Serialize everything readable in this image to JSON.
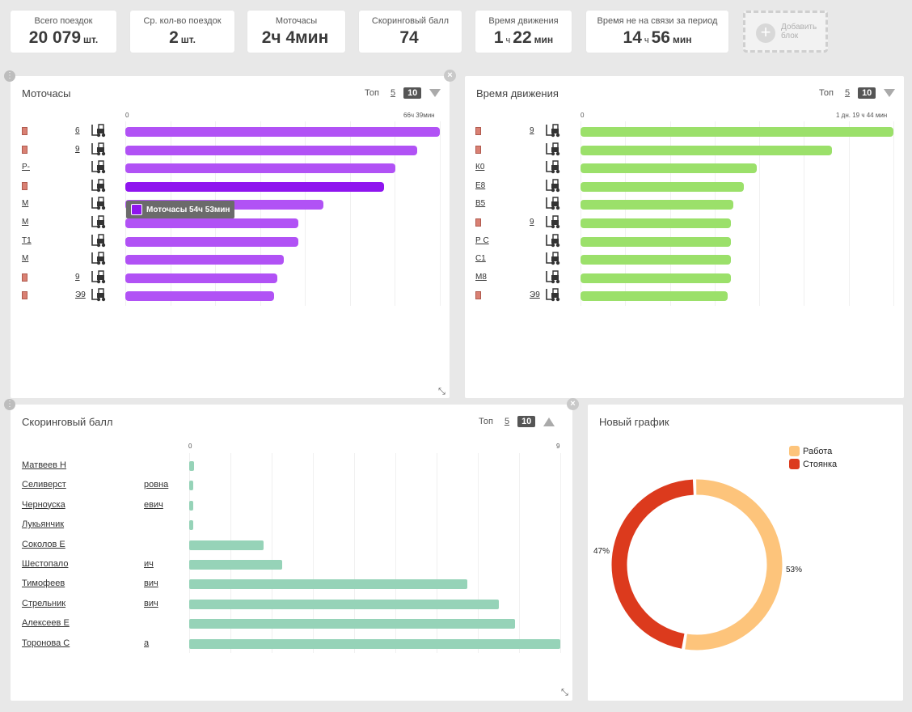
{
  "kpis": [
    {
      "label": "Всего поездок",
      "value": "20 079",
      "unit": "шт."
    },
    {
      "label": "Ср. кол-во поездок",
      "value": "2",
      "unit": "шт."
    },
    {
      "label": "Моточасы",
      "value": "2ч 4мин",
      "unit": ""
    },
    {
      "label": "Скоринговый балл",
      "value": "74",
      "unit": ""
    },
    {
      "label": "Время движения",
      "v1": "1",
      "s1": "ч",
      "v2": "22",
      "s2": "мин"
    },
    {
      "label": "Время не на связи за период",
      "v1": "14",
      "s1": "ч",
      "v2": "56",
      "s2": "мин"
    }
  ],
  "add_block": {
    "line1": "Добавить",
    "line2": "блок"
  },
  "top_control": {
    "label": "Топ",
    "opt5": "5",
    "opt10": "10"
  },
  "motohours": {
    "title": "Моточасы",
    "scale_min": "0",
    "scale_max": "66ч 39мин",
    "color": "#b152f5",
    "highlight_color": "#8f15ef",
    "max": 66.65,
    "rows": [
      {
        "label": "",
        "sub": "6",
        "red": true,
        "value": 66.65
      },
      {
        "label": "",
        "sub": "9",
        "red": true,
        "value": 61.9
      },
      {
        "label": "Р-",
        "sub": "",
        "red": false,
        "value": 57.2
      },
      {
        "label": "",
        "sub": "",
        "red": true,
        "value": 54.88,
        "highlight": true
      },
      {
        "label": "М",
        "sub": "",
        "red": false,
        "value": 42
      },
      {
        "label": "М",
        "sub": "",
        "red": false,
        "value": 36.7
      },
      {
        "label": "Т1",
        "sub": "",
        "red": false,
        "value": 36.7
      },
      {
        "label": "М",
        "sub": "",
        "red": false,
        "value": 33.5
      },
      {
        "label": "",
        "sub": "9",
        "red": true,
        "value": 32.2
      },
      {
        "label": "",
        "sub": "Э9",
        "red": true,
        "value": 31.5
      }
    ],
    "tooltip": "Моточасы 54ч 53мин"
  },
  "movement": {
    "title": "Время движения",
    "scale_min": "0",
    "scale_max": "1 дн. 19 ч 44 мин",
    "color": "#9be06a",
    "max": 43.73,
    "rows": [
      {
        "label": "",
        "sub": "9",
        "red": true,
        "value": 43.73
      },
      {
        "label": "",
        "sub": "",
        "red": true,
        "value": 35.1
      },
      {
        "label": "К0",
        "sub": "",
        "red": false,
        "value": 24.6
      },
      {
        "label": "Е8",
        "sub": "",
        "red": false,
        "value": 22.8
      },
      {
        "label": "В5",
        "sub": "",
        "red": false,
        "value": 21.4
      },
      {
        "label": "",
        "sub": "9",
        "red": true,
        "value": 21.0
      },
      {
        "label": "Р С",
        "sub": "",
        "red": false,
        "value": 21.0
      },
      {
        "label": "С1",
        "sub": "",
        "red": false,
        "value": 21.0
      },
      {
        "label": "М8",
        "sub": "",
        "red": false,
        "value": 21.0
      },
      {
        "label": "",
        "sub": "Э9",
        "red": true,
        "value": 20.6
      }
    ]
  },
  "scoring": {
    "title": "Скоринговый балл",
    "scale_min": "0",
    "scale_max": "9",
    "color": "#96d3b8",
    "max": 9,
    "rows": [
      {
        "name": "Матвеев Н",
        "mid": "",
        "value": 0.12
      },
      {
        "name": "Селиверст",
        "mid": "ровна",
        "value": 0.1
      },
      {
        "name": "Черноуска",
        "mid": "евич",
        "value": 0.1
      },
      {
        "name": "Лукьянчик",
        "mid": "",
        "value": 0.1
      },
      {
        "name": "Соколов Е",
        "mid": "",
        "value": 1.8
      },
      {
        "name": "Шестопало",
        "mid": "ич",
        "value": 2.25
      },
      {
        "name": "Тимофеев",
        "mid": "вич",
        "value": 6.75
      },
      {
        "name": "Стрельник",
        "mid": "вич",
        "value": 7.5
      },
      {
        "name": "Алексеев Е",
        "mid": "",
        "value": 7.9
      },
      {
        "name": "Торонова С",
        "mid": "а",
        "value": 9
      }
    ]
  },
  "new_chart": {
    "title": "Новый график",
    "chart_data": {
      "type": "pie",
      "categories": [
        "Работа",
        "Стоянка"
      ],
      "values": [
        53,
        47
      ],
      "labels": [
        "53%",
        "47%"
      ],
      "colors": [
        "#fdc47b",
        "#dc3a1d"
      ]
    }
  }
}
